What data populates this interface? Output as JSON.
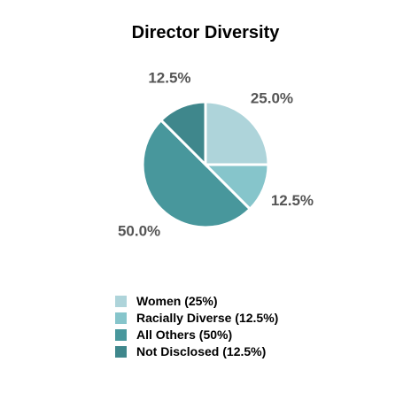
{
  "chart_data": {
    "type": "pie",
    "title": "Director Diversity",
    "slices": [
      {
        "label": "Women (25%)",
        "value": 25.0,
        "value_label": "25.0%",
        "color": "#aed4da"
      },
      {
        "label": "Racially Diverse (12.5%)",
        "value": 12.5,
        "value_label": "12.5%",
        "color": "#86c5cb"
      },
      {
        "label": "All Others (50%)",
        "value": 50.0,
        "value_label": "50.0%",
        "color": "#48979c"
      },
      {
        "label": "Not Disclosed (12.5%)",
        "value": 12.5,
        "value_label": "12.5%",
        "color": "#3f878c"
      }
    ],
    "start_angle": "12 o'clock",
    "direction": "clockwise",
    "legend_position": "bottom"
  }
}
